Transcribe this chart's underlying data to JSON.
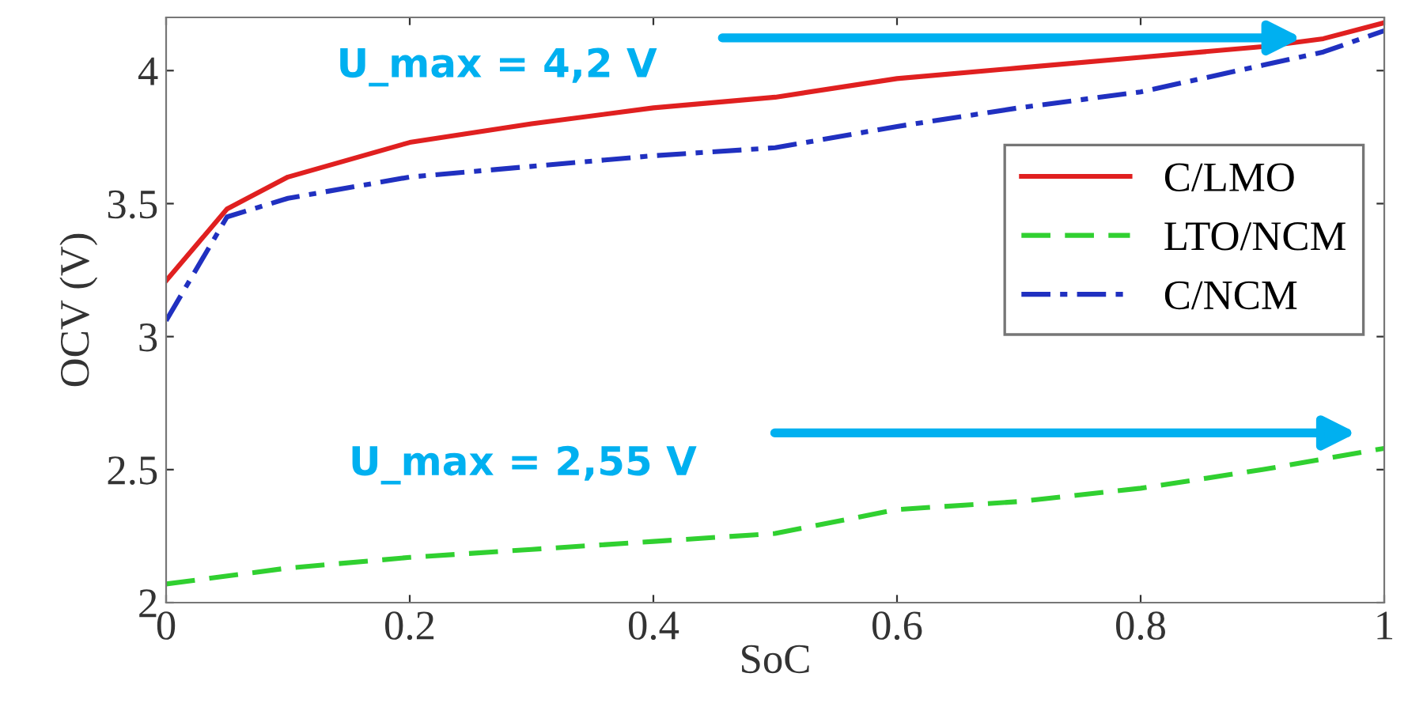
{
  "chart_data": {
    "type": "line",
    "xlabel": "SoC",
    "ylabel": "OCV (V)",
    "xlim": [
      0,
      1
    ],
    "ylim": [
      2,
      4.2
    ],
    "xticks": [
      0,
      0.2,
      0.4,
      0.6,
      0.8,
      1
    ],
    "yticks": [
      2,
      2.5,
      3,
      3.5,
      4
    ],
    "grid": false,
    "legend": "right",
    "marker": "none",
    "annotations": [
      "U_max = 4,2 V",
      "U_max = 2,55 V"
    ],
    "series": [
      {
        "name": "C/LMO",
        "color": "#e02020",
        "line_style": "solid",
        "x": [
          0,
          0.05,
          0.1,
          0.2,
          0.3,
          0.4,
          0.5,
          0.6,
          0.7,
          0.8,
          0.9,
          0.95,
          1
        ],
        "values": [
          3.21,
          3.48,
          3.6,
          3.73,
          3.8,
          3.86,
          3.9,
          3.97,
          4.01,
          4.05,
          4.09,
          4.12,
          4.18
        ]
      },
      {
        "name": "LTO/NCM",
        "color": "#30d030",
        "line_style": "dashed",
        "x": [
          0,
          0.1,
          0.2,
          0.3,
          0.4,
          0.5,
          0.6,
          0.7,
          0.8,
          0.9,
          1
        ],
        "values": [
          2.07,
          2.13,
          2.17,
          2.2,
          2.23,
          2.26,
          2.35,
          2.38,
          2.43,
          2.5,
          2.58
        ]
      },
      {
        "name": "C/NCM",
        "color": "#2030c0",
        "line_style": "dashdot",
        "x": [
          0,
          0.05,
          0.1,
          0.2,
          0.3,
          0.4,
          0.5,
          0.6,
          0.7,
          0.8,
          0.9,
          0.95,
          1
        ],
        "values": [
          3.06,
          3.45,
          3.52,
          3.6,
          3.64,
          3.68,
          3.71,
          3.79,
          3.86,
          3.92,
          4.02,
          4.07,
          4.15
        ]
      }
    ]
  }
}
